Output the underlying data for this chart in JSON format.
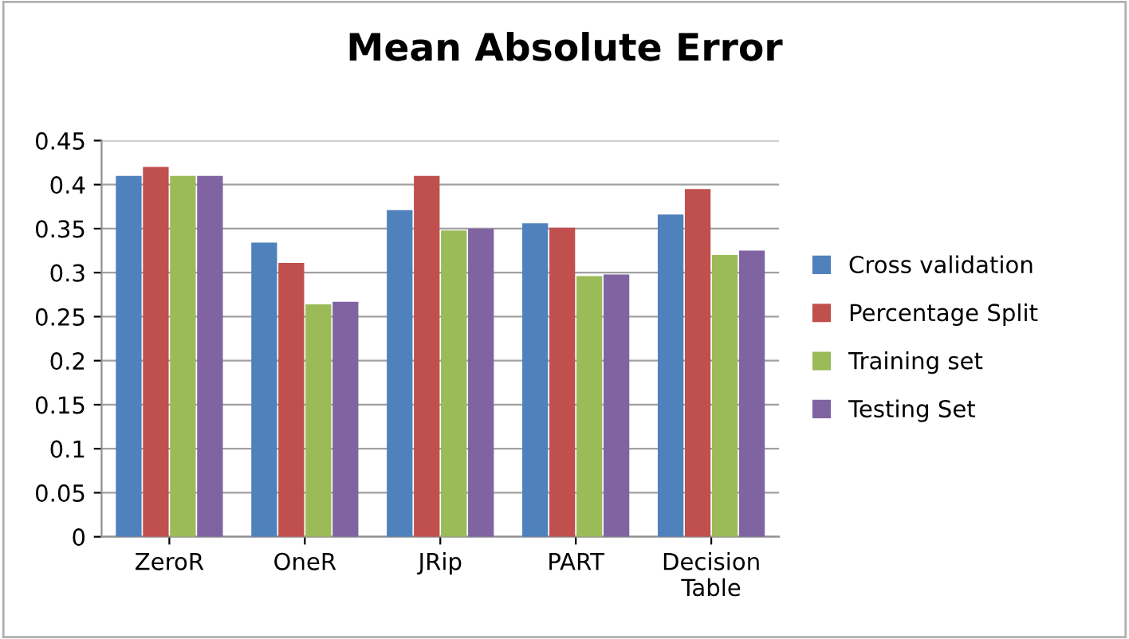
{
  "chart_data": {
    "type": "bar",
    "title": "Mean Absolute Error",
    "categories": [
      "ZeroR",
      "OneR",
      "JRip",
      "PART",
      "Decision\nTable"
    ],
    "series": [
      {
        "name": "Cross validation",
        "color": "#4f81bd",
        "values": [
          0.41,
          0.334,
          0.371,
          0.356,
          0.366
        ]
      },
      {
        "name": "Percentage Split",
        "color": "#c0504d",
        "values": [
          0.42,
          0.311,
          0.41,
          0.351,
          0.395
        ]
      },
      {
        "name": "Training set",
        "color": "#9bbb59",
        "values": [
          0.41,
          0.264,
          0.348,
          0.296,
          0.32
        ]
      },
      {
        "name": "Testing Set",
        "color": "#8064a2",
        "values": [
          0.41,
          0.267,
          0.35,
          0.298,
          0.325
        ]
      }
    ],
    "ylim": [
      0,
      0.45
    ],
    "yticks": [
      0,
      0.05,
      0.1,
      0.15,
      0.2,
      0.25,
      0.3,
      0.35,
      0.4,
      0.45
    ],
    "grid": "y",
    "legend": "right"
  }
}
